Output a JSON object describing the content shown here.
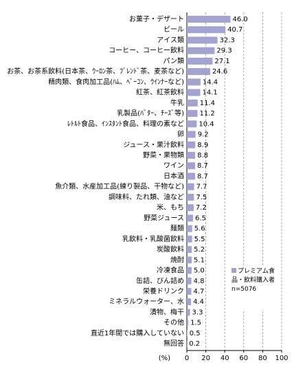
{
  "chart_data": {
    "type": "bar",
    "orientation": "horizontal",
    "categories": [
      "お菓子・デザート",
      "ビール",
      "アイス類",
      "コーヒー、コーヒー飲料",
      "パン類",
      "お茶、お茶系飲料(日本茶、ｳｰﾛﾝ茶、ﾌﾞﾚﾝﾄﾞ茶、麦茶など)",
      "精肉類、食肉加工品(ﾊﾑ、ﾍﾞｰｺﾝ、ｳｲﾝﾅｰなど)",
      "紅茶、紅茶飲料",
      "牛乳",
      "乳製品(ﾊﾞﾀｰ、ﾁｰｽﾞ等)",
      "ﾚﾄﾙﾄ食品、ｲﾝｽﾀﾝﾄ食品、料理の素など",
      "卵",
      "ジュース・果汁飲料",
      "野菜・果物類",
      "ワイン",
      "日本酒",
      "魚介類、水産加工品(練り製品、干物など)",
      "調味料、たれ類、油など",
      "米、もち",
      "野菜ジュース",
      "麺類",
      "乳飲料・乳酸菌飲料",
      "炭酸飲料",
      "焼酎",
      "冷凍食品",
      "缶詰、びん詰め",
      "栄養ドリンク",
      "ミネラルウォーター、水",
      "漬物、梅干",
      "その他",
      "直近1年間では購入していない",
      "無回答"
    ],
    "series": [
      {
        "name": "プレミアム食品・飲料購入者",
        "color": "#a3a3d3",
        "values": [
          46.0,
          40.7,
          32.3,
          29.3,
          27.1,
          24.6,
          14.4,
          14.1,
          11.4,
          11.2,
          10.4,
          9.2,
          8.9,
          8.8,
          8.7,
          8.7,
          7.7,
          7.5,
          7.2,
          6.5,
          5.6,
          5.5,
          5.2,
          5.1,
          5.0,
          4.8,
          4.7,
          4.4,
          3.3,
          1.5,
          0.5,
          0.2
        ],
        "value_labels": [
          "46.0",
          "40.7",
          "32.3",
          "29.3",
          "27.1",
          "24.6",
          "14.4",
          "14.1",
          "11.4",
          "11.2",
          "10.4",
          "9.2",
          "8.9",
          "8.8",
          "8.7",
          "8.7",
          "7.7",
          "7.5",
          "7.2",
          "6.5",
          "5.6",
          "5.5",
          "5.2",
          "5.1",
          "5.0",
          "4.8",
          "4.7",
          "4.4",
          "3.3",
          "1.5",
          "0.5",
          "0.2"
        ]
      }
    ],
    "xlim": [
      0,
      100
    ],
    "xticks": [
      0,
      20,
      40,
      60,
      80,
      100
    ],
    "grid": true,
    "unit_label": "(%)",
    "annotation": "n=5076"
  }
}
